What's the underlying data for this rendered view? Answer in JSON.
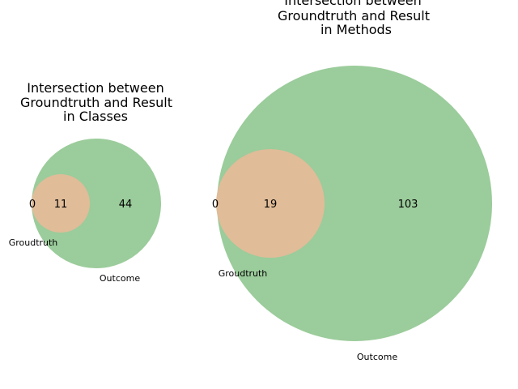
{
  "diagrams": [
    {
      "title_lines": [
        "Intersection between",
        "Groundtruth and Result",
        "in Classes"
      ],
      "groundtruth_only": "0",
      "intersection": "11",
      "outcome_only": "44",
      "groundtruth_label": "Groudtruth",
      "outcome_label": "Outcome"
    },
    {
      "title_lines": [
        "Intersection between",
        "Groundtruth and Result",
        "in Methods"
      ],
      "groundtruth_only": "0",
      "intersection": "19",
      "outcome_only": "103",
      "groundtruth_label": "Groudtruth",
      "outcome_label": "Outcome"
    }
  ],
  "colors": {
    "outcome": "#9bcc9b",
    "intersection": "#e0bc98"
  }
}
